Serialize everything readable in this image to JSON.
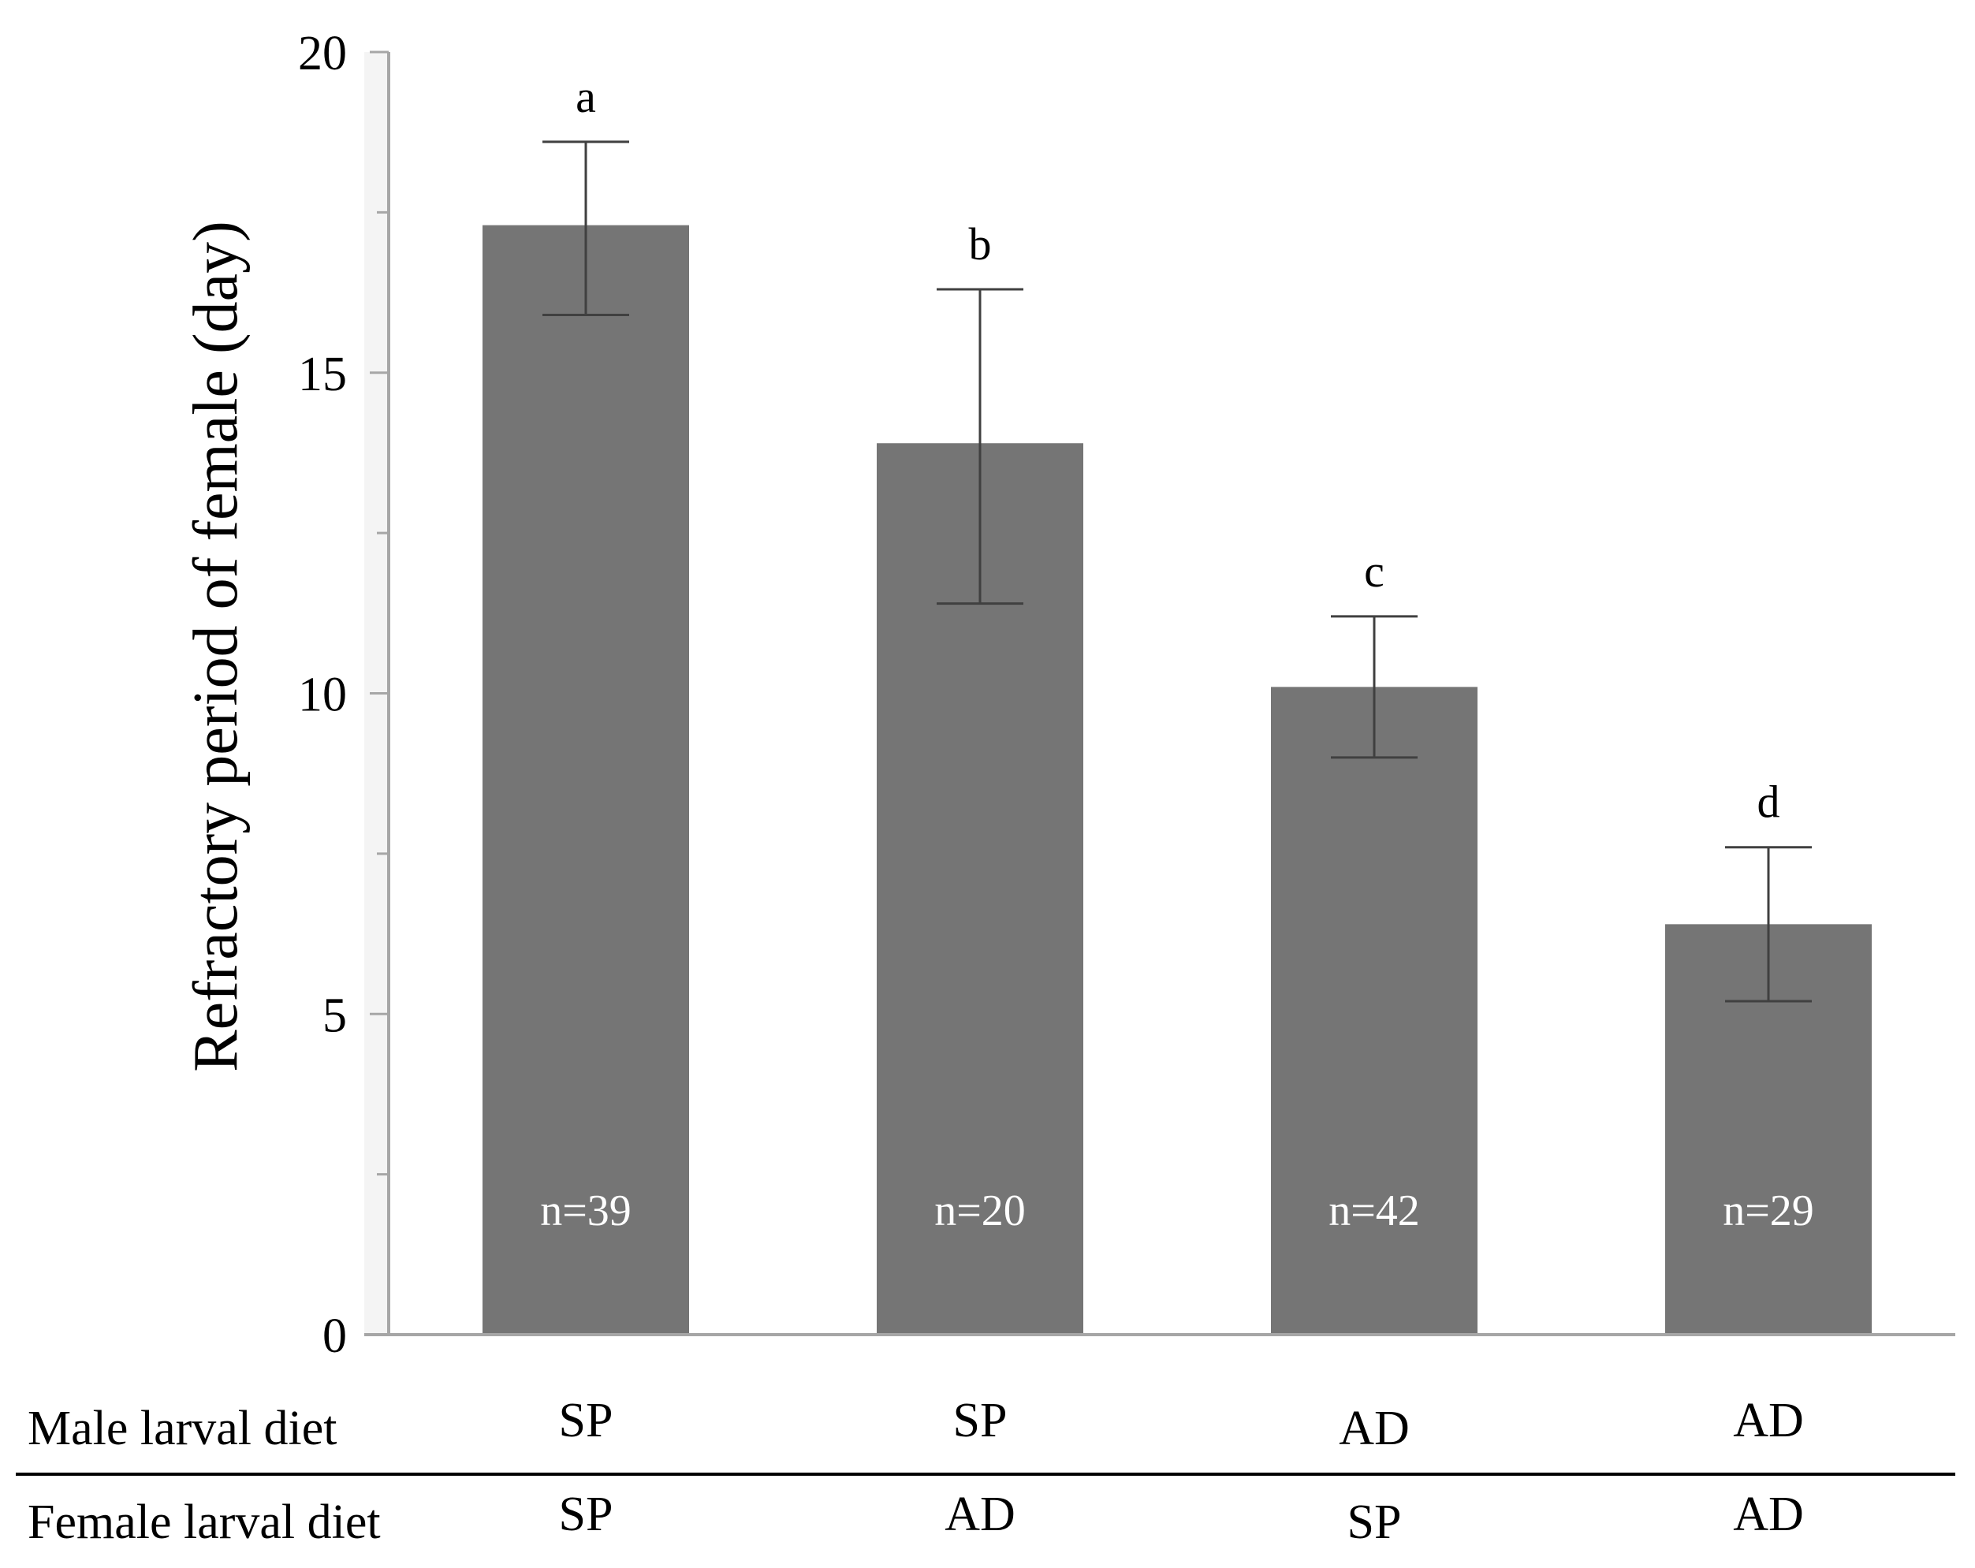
{
  "chart_data": {
    "type": "bar",
    "ylabel": "Refractory period of female (day)",
    "ylim": [
      0,
      20
    ],
    "yticks": [
      0,
      5,
      10,
      15,
      20
    ],
    "categories": [
      "SP / SP",
      "SP / AD",
      "AD / SP",
      "AD / AD"
    ],
    "values": [
      17.3,
      13.9,
      10.1,
      6.4
    ],
    "error_upper": [
      18.6,
      16.3,
      11.2,
      7.6
    ],
    "error_lower": [
      15.9,
      11.4,
      9.0,
      5.2
    ],
    "significance_letters": [
      "a",
      "b",
      "c",
      "d"
    ],
    "sample_sizes": [
      "n=39",
      "n=20",
      "n=42",
      "n=29"
    ],
    "grid": false,
    "legend": "none"
  },
  "factor_table": {
    "rows": [
      {
        "label": "Male larval diet",
        "values": [
          "SP",
          "SP",
          "AD",
          "AD"
        ]
      },
      {
        "label": "Female larval diet",
        "values": [
          "SP",
          "AD",
          "SP",
          "AD"
        ]
      }
    ]
  },
  "colors": {
    "bar": "#757575",
    "axis": "#a6a6a6",
    "error_bar": "#404040",
    "text": "#000000",
    "bar_label": "#ffffff"
  }
}
